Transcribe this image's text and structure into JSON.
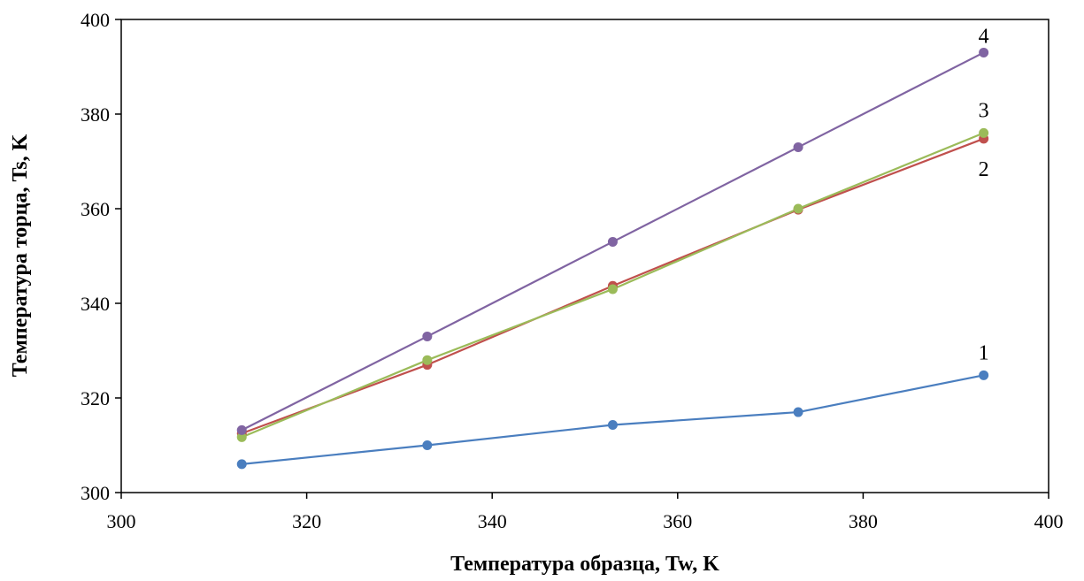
{
  "chart_data": {
    "type": "line",
    "title": "",
    "xlabel": "Температура образца, Tw, K",
    "ylabel": "Температура торца, Ts, K",
    "xlim": [
      300,
      400
    ],
    "ylim": [
      300,
      400
    ],
    "xticks": [
      300,
      320,
      340,
      360,
      380,
      400
    ],
    "yticks": [
      300,
      320,
      340,
      360,
      380,
      400
    ],
    "grid": false,
    "legend": "none",
    "x": [
      313,
      333,
      353,
      373,
      393
    ],
    "series": [
      {
        "label": "1",
        "color": "#4a7ebf",
        "values": [
          306,
          310,
          314.3,
          317,
          324.8
        ]
      },
      {
        "label": "2",
        "color": "#c0504d",
        "values": [
          312.5,
          327,
          343.7,
          359.8,
          374.8
        ]
      },
      {
        "label": "3",
        "color": "#9bbb59",
        "values": [
          311.7,
          328,
          343,
          360,
          376
        ]
      },
      {
        "label": "4",
        "color": "#8064a2",
        "values": [
          313.2,
          333,
          353,
          373,
          393
        ]
      }
    ]
  }
}
